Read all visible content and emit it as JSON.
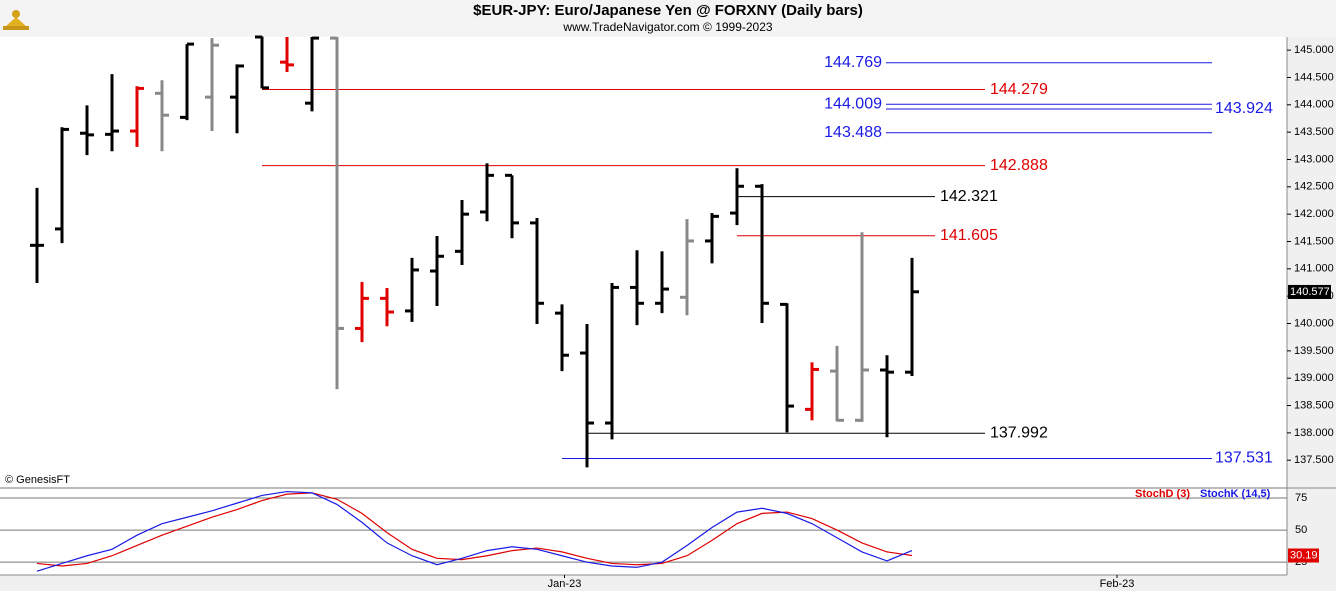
{
  "chart_data": [
    {
      "type": "ohlc",
      "title": "$EUR-JPY:  Euro/Japanese Yen @ FORXNY  (Daily bars)",
      "subtitle": "www.TradeNavigator.com © 1999-2023",
      "watermark": "© GenesisFT",
      "x": [
        0,
        1,
        2,
        3,
        4,
        5,
        6,
        7,
        8,
        9,
        10,
        11,
        12,
        13,
        14,
        15,
        16,
        17,
        18,
        19,
        20,
        21,
        22,
        23,
        24,
        25,
        26,
        27,
        28,
        29,
        30,
        31,
        32,
        33,
        34,
        35
      ],
      "open": [
        141.43,
        141.73,
        143.48,
        143.46,
        143.52,
        144.21,
        143.77,
        144.14,
        144.14,
        145.24,
        144.78,
        144.03,
        145.22,
        139.91,
        140.46,
        140.23,
        140.96,
        141.32,
        142.04,
        142.71,
        141.84,
        140.19,
        139.46,
        138.18,
        140.66,
        140.37,
        140.48,
        141.51,
        142.02,
        142.51,
        140.35,
        138.43,
        139.13,
        138.23,
        139.15,
        139.11
      ],
      "high": [
        142.48,
        143.59,
        143.99,
        144.56,
        144.34,
        144.45,
        145.11,
        145.22,
        144.74,
        145.25,
        145.24,
        145.24,
        145.24,
        140.76,
        140.65,
        141.2,
        141.6,
        142.26,
        142.93,
        142.71,
        141.93,
        140.35,
        139.99,
        140.74,
        141.34,
        141.32,
        141.91,
        142.02,
        142.84,
        142.55,
        140.37,
        139.29,
        139.59,
        141.67,
        139.42,
        141.2
      ],
      "low": [
        140.74,
        141.47,
        143.08,
        143.15,
        143.23,
        143.15,
        143.72,
        143.52,
        143.48,
        144.3,
        144.6,
        143.88,
        138.8,
        139.66,
        139.95,
        140.03,
        140.32,
        141.07,
        141.87,
        141.56,
        139.99,
        139.13,
        137.37,
        137.88,
        139.97,
        140.19,
        140.15,
        141.1,
        141.8,
        140.01,
        138.01,
        138.23,
        138.21,
        138.2,
        137.92,
        139.04
      ],
      "close": [
        141.43,
        143.55,
        143.45,
        143.52,
        144.3,
        143.81,
        145.11,
        145.09,
        144.71,
        144.31,
        144.73,
        145.22,
        139.91,
        140.46,
        140.21,
        140.98,
        141.23,
        142.0,
        142.71,
        141.84,
        140.37,
        139.42,
        138.18,
        140.66,
        140.37,
        140.63,
        141.51,
        141.96,
        142.51,
        140.37,
        138.49,
        139.16,
        138.23,
        139.15,
        139.11,
        140.58
      ],
      "colors": [
        "#000000",
        "#000000",
        "#000000",
        "#000000",
        "#e00000",
        "#888888",
        "#000000",
        "#888888",
        "#000000",
        "#000000",
        "#e00000",
        "#000000",
        "#888888",
        "#e00000",
        "#e00000",
        "#000000",
        "#000000",
        "#000000",
        "#000000",
        "#000000",
        "#000000",
        "#000000",
        "#000000",
        "#000000",
        "#000000",
        "#000000",
        "#888888",
        "#000000",
        "#000000",
        "#000000",
        "#000000",
        "#e00000",
        "#888888",
        "#888888",
        "#000000",
        "#000000"
      ],
      "xlim": [
        -1.48,
        50
      ],
      "ylim": [
        137.01,
        145.24
      ],
      "yticks": [
        {
          "value": 137.5,
          "label": "137.500"
        },
        {
          "value": 138,
          "label": "138.000"
        },
        {
          "value": 138.5,
          "label": "138.500"
        },
        {
          "value": 139,
          "label": "139.000"
        },
        {
          "value": 139.5,
          "label": "139.500"
        },
        {
          "value": 140,
          "label": "140.000"
        },
        {
          "value": 140.5,
          "label": "140.500"
        },
        {
          "value": 141,
          "label": "141.000"
        },
        {
          "value": 141.5,
          "label": "141.500"
        },
        {
          "value": 142,
          "label": "142.000"
        },
        {
          "value": 142.5,
          "label": "142.500"
        },
        {
          "value": 143,
          "label": "143.000"
        },
        {
          "value": 143.5,
          "label": "143.500"
        },
        {
          "value": 144,
          "label": "144.000"
        },
        {
          "value": 144.5,
          "label": "144.500"
        },
        {
          "value": 145,
          "label": "145.000"
        }
      ],
      "levels": [
        {
          "value": 144.769,
          "color": "#1a1ae6"
        },
        {
          "value": 144.279,
          "color": "#e00000"
        },
        {
          "value": 144.009,
          "color": "#1a1ae6"
        },
        {
          "value": 143.924,
          "color": "#1a1ae6"
        },
        {
          "value": 143.488,
          "color": "#1a1ae6"
        },
        {
          "value": 142.888,
          "color": "#e00000"
        },
        {
          "value": 142.321,
          "color": "#000000"
        },
        {
          "value": 141.605,
          "color": "#e00000"
        },
        {
          "value": 137.992,
          "color": "#000000"
        },
        {
          "value": 137.531,
          "color": "#1a1ae6"
        }
      ],
      "last_price": 140.577
    },
    {
      "type": "line",
      "x": [
        0,
        1,
        2,
        3,
        4,
        5,
        6,
        7,
        8,
        9,
        10,
        11,
        12,
        13,
        14,
        15,
        16,
        17,
        18,
        19,
        20,
        21,
        22,
        23,
        24,
        25,
        26,
        27,
        28,
        29,
        30,
        31,
        32,
        33,
        34,
        35
      ],
      "series": [
        {
          "name": "StochD (3)",
          "color": "#e00000",
          "values": [
            24,
            22,
            24,
            30,
            38,
            46,
            53,
            60,
            66,
            73,
            78,
            79,
            74,
            63,
            48,
            35,
            28,
            27,
            30,
            34,
            36,
            33,
            28,
            24,
            23,
            24,
            30,
            42,
            55,
            63,
            64,
            59,
            50,
            40,
            33,
            30.19
          ]
        },
        {
          "name": "StochK (14,5)",
          "color": "#1a1ae6",
          "values": [
            18,
            24,
            30,
            35,
            46,
            55,
            60,
            65,
            71,
            77,
            80,
            79,
            70,
            56,
            40,
            30,
            23,
            28,
            34,
            37,
            35,
            30,
            25,
            22,
            21,
            25,
            38,
            52,
            64,
            67,
            63,
            55,
            44,
            33,
            26,
            34
          ]
        }
      ],
      "xlim": [
        -1.48,
        50
      ],
      "xticks": [
        {
          "value": 21.1,
          "label": "Jan-23"
        },
        {
          "value": 43.2,
          "label": "Feb-23"
        }
      ],
      "ylim": [
        15,
        82
      ],
      "yticks": [
        75,
        50,
        25
      ]
    }
  ]
}
